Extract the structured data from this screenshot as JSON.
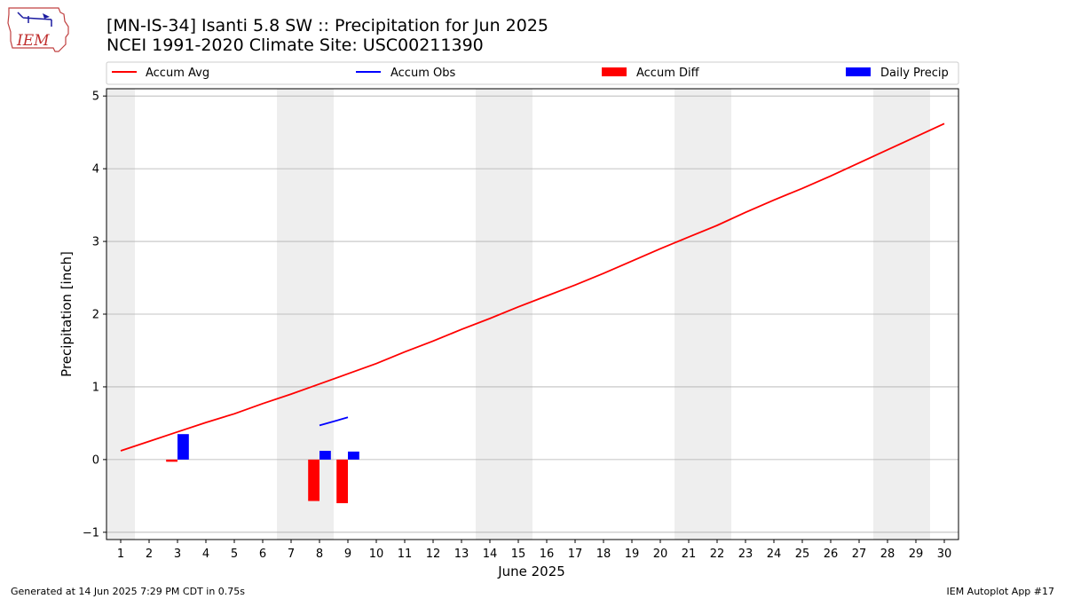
{
  "title": "[MN-IS-34] Isanti 5.8 SW :: Precipitation for Jun 2025",
  "subtitle": "NCEI 1991-2020 Climate Site: USC00211390",
  "logo_text": "IEM",
  "footer_left": "Generated at 14 Jun 2025 7:29 PM CDT in 0.75s",
  "footer_right": "IEM Autoplot App #17",
  "colors": {
    "accum_avg": "#ff0000",
    "accum_obs": "#0000ff",
    "accum_diff": "#ff0000",
    "daily_precip": "#0000ff",
    "weekend_shade": "#eeeeee",
    "grid": "#b0b0b0"
  },
  "chart_data": {
    "type": "line",
    "xlabel": "June 2025",
    "ylabel": "Precipitation [inch]",
    "xlim": [
      0.5,
      30.5
    ],
    "ylim": [
      -1.1,
      5.1
    ],
    "x_ticks": [
      1,
      2,
      3,
      4,
      5,
      6,
      7,
      8,
      9,
      10,
      11,
      12,
      13,
      14,
      15,
      16,
      17,
      18,
      19,
      20,
      21,
      22,
      23,
      24,
      25,
      26,
      27,
      28,
      29,
      30
    ],
    "y_ticks": [
      -1,
      0,
      1,
      2,
      3,
      4,
      5
    ],
    "grid": "y",
    "legend_position": "top",
    "legend": [
      "Accum Avg",
      "Accum Obs",
      "Accum Diff",
      "Daily Precip"
    ],
    "weekend_spans": [
      [
        0.5,
        1.5
      ],
      [
        6.5,
        8.5
      ],
      [
        13.5,
        15.5
      ],
      [
        20.5,
        22.5
      ],
      [
        27.5,
        29.5
      ]
    ],
    "accum_avg": {
      "x": [
        1,
        2,
        3,
        4,
        5,
        6,
        7,
        8,
        9,
        10,
        11,
        12,
        13,
        14,
        15,
        16,
        17,
        18,
        19,
        20,
        21,
        22,
        23,
        24,
        25,
        26,
        27,
        28,
        29,
        30
      ],
      "values": [
        0.12,
        0.25,
        0.38,
        0.51,
        0.63,
        0.77,
        0.9,
        1.04,
        1.18,
        1.32,
        1.48,
        1.63,
        1.79,
        1.94,
        2.1,
        2.25,
        2.4,
        2.56,
        2.73,
        2.9,
        3.06,
        3.22,
        3.4,
        3.57,
        3.73,
        3.9,
        4.08,
        4.26,
        4.44,
        4.62
      ]
    },
    "accum_obs": {
      "x": [
        8,
        9
      ],
      "values": [
        0.47,
        0.58
      ]
    },
    "accum_diff": {
      "x": [
        3,
        8,
        9
      ],
      "values": [
        -0.03,
        -0.57,
        -0.6
      ]
    },
    "daily_precip": {
      "x": [
        3,
        8,
        9
      ],
      "values": [
        0.35,
        0.12,
        0.11
      ]
    }
  }
}
